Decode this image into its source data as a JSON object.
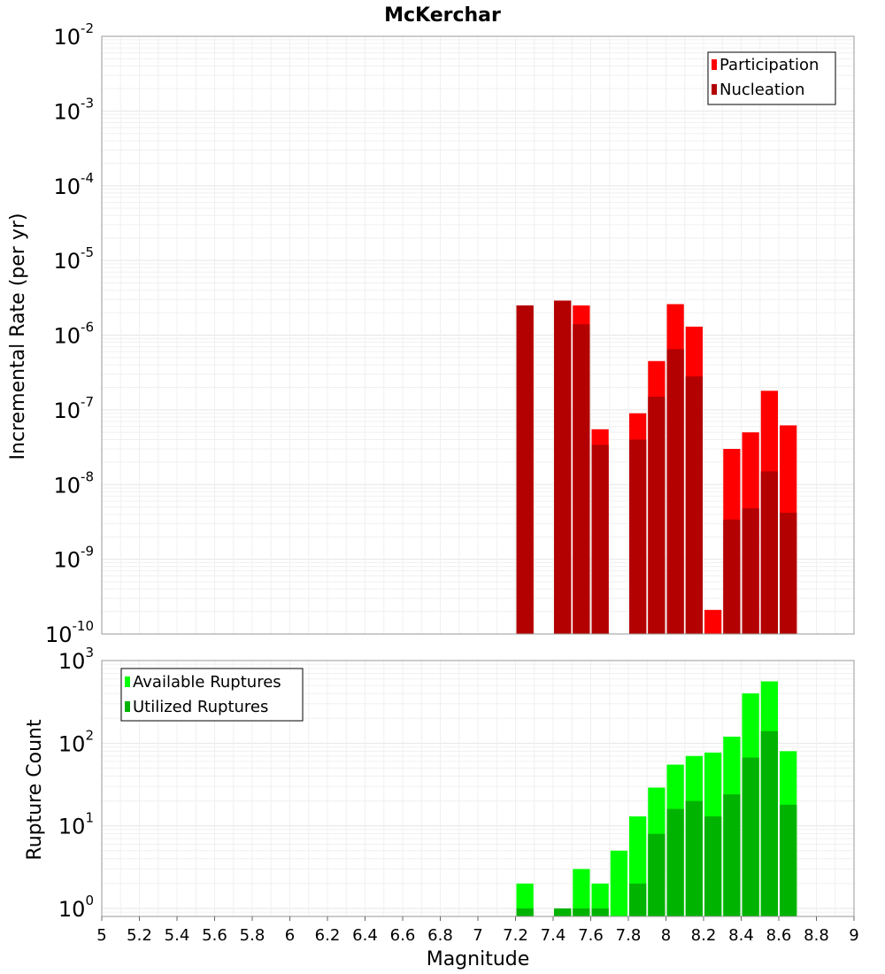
{
  "title": "McKerchar",
  "xlabel": "Magnitude",
  "x_ticks": [
    "5",
    "5.2",
    "5.4",
    "5.6",
    "5.8",
    "6",
    "6.2",
    "6.4",
    "6.6",
    "6.8",
    "7",
    "7.2",
    "7.4",
    "7.6",
    "7.8",
    "8",
    "8.2",
    "8.4",
    "8.6",
    "8.8",
    "9"
  ],
  "colors": {
    "participation": "#ff0000",
    "nucleation": "#b30000",
    "available": "#00ff00",
    "utilized": "#00b300",
    "grid": "#e6e6e6",
    "frame": "#999999"
  },
  "chart_data": [
    {
      "type": "bar",
      "title": "McKerchar",
      "ylabel": "Incremental Rate (per yr)",
      "xlabel": "Magnitude",
      "y_scale": "log",
      "xlim": [
        5,
        9
      ],
      "ylim": [
        1e-10,
        0.01
      ],
      "y_tick_exponents": [
        "-2",
        "-3",
        "-4",
        "-5",
        "-6",
        "-7",
        "-8",
        "-9",
        "-10"
      ],
      "grid": true,
      "legend_position": "top-right",
      "legend": [
        "Participation",
        "Nucleation"
      ],
      "x": [
        7.25,
        7.45,
        7.55,
        7.65,
        7.85,
        7.95,
        8.05,
        8.15,
        8.25,
        8.35,
        8.45,
        8.55,
        8.65
      ],
      "series": [
        {
          "name": "Participation",
          "values": [
            2.5e-06,
            2.9e-06,
            2.5e-06,
            5.5e-08,
            9e-08,
            4.5e-07,
            2.6e-06,
            1.3e-06,
            2.1e-10,
            3e-08,
            5e-08,
            1.8e-07,
            6.2e-08
          ]
        },
        {
          "name": "Nucleation",
          "values": [
            2.5e-06,
            2.9e-06,
            1.4e-06,
            3.4e-08,
            4e-08,
            1.5e-07,
            6.5e-07,
            2.8e-07,
            null,
            3.4e-09,
            4.8e-09,
            1.5e-08,
            4.2e-09
          ]
        }
      ]
    },
    {
      "type": "bar",
      "ylabel": "Rupture Count",
      "xlabel": "Magnitude",
      "y_scale": "log",
      "xlim": [
        5,
        9
      ],
      "ylim": [
        0.8,
        1000
      ],
      "y_tick_exponents": [
        "3",
        "2",
        "1",
        "0"
      ],
      "grid": true,
      "legend_position": "top-left",
      "legend": [
        "Available Ruptures",
        "Utilized Ruptures"
      ],
      "x": [
        7.25,
        7.45,
        7.55,
        7.65,
        7.75,
        7.85,
        7.95,
        8.05,
        8.15,
        8.25,
        8.35,
        8.45,
        8.55,
        8.65
      ],
      "series": [
        {
          "name": "Available Ruptures",
          "values": [
            2,
            1,
            3,
            2,
            5,
            13,
            29,
            55,
            70,
            77,
            120,
            400,
            560,
            80
          ]
        },
        {
          "name": "Utilized Ruptures",
          "values": [
            1,
            1,
            1,
            1,
            null,
            2,
            8,
            16,
            20,
            13,
            24,
            67,
            140,
            18
          ]
        }
      ]
    }
  ]
}
